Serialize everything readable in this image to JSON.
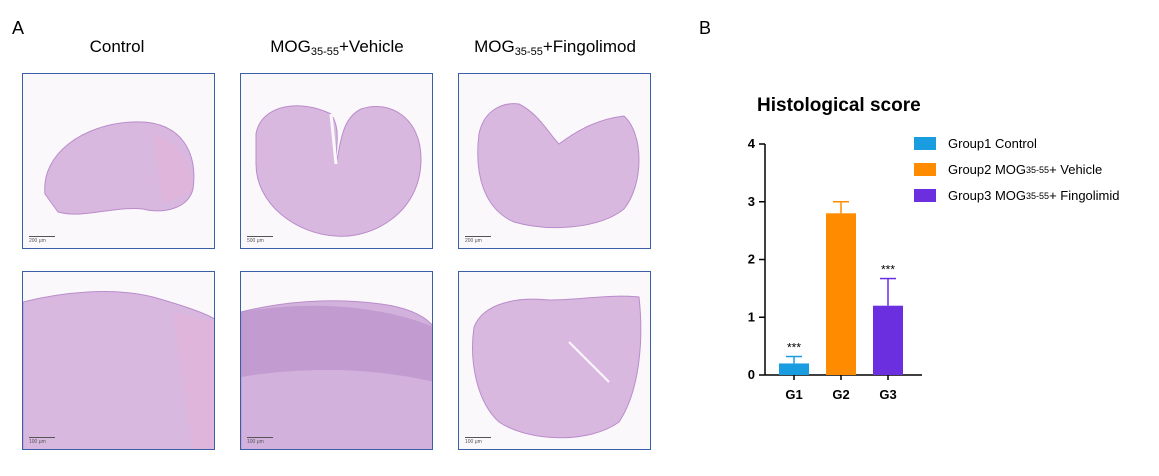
{
  "panels": {
    "a_label": "A",
    "b_label": "B",
    "columns": [
      {
        "title_main": "Control",
        "title_sub": "",
        "title_tail": ""
      },
      {
        "title_main": "MOG",
        "title_sub": "35-55",
        "title_tail": "+Vehicle"
      },
      {
        "title_main": "MOG",
        "title_sub": "35-55",
        "title_tail": "+Fingolimod"
      }
    ],
    "scale_labels_top": [
      "200 μm",
      "500 μm",
      "200 μm"
    ],
    "scale_labels_bottom": [
      "100 μm",
      "100 μm",
      "100 μm"
    ]
  },
  "legend": [
    {
      "pre": "Group1 Control",
      "sub": "",
      "post": "",
      "color": "#1a9ce0"
    },
    {
      "pre": "Group2 MOG",
      "sub": "35-55",
      "post": "+ Vehicle",
      "color": "#ff8c00"
    },
    {
      "pre": "Group3 MOG",
      "sub": "35-55",
      "post": "+ Fingolimid",
      "color": "#6b2fe0"
    }
  ],
  "chart_data": {
    "type": "bar",
    "title": "Histological score",
    "categories": [
      "G1",
      "G2",
      "G3"
    ],
    "values": [
      0.2,
      2.8,
      1.2
    ],
    "errors": [
      0.12,
      0.2,
      0.47
    ],
    "colors": [
      "#1a9ce0",
      "#ff8c00",
      "#6b2fe0"
    ],
    "annotations": [
      "***",
      "",
      "***"
    ],
    "ylim": [
      0,
      4
    ],
    "yticks": [
      0,
      1,
      2,
      3,
      4
    ],
    "xlabel": "",
    "ylabel": ""
  }
}
